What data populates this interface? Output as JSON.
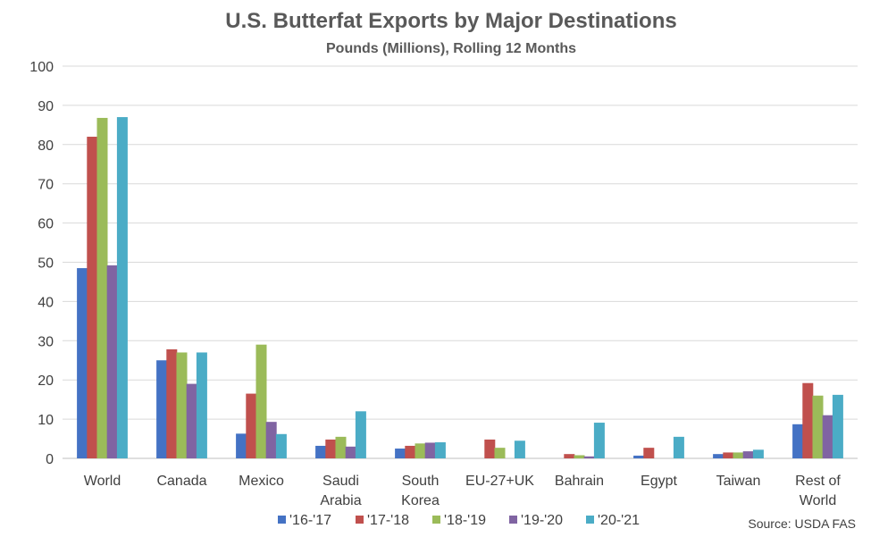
{
  "chart_data": {
    "type": "bar",
    "title": "U.S. Butterfat Exports by Major Destinations",
    "subtitle": "Pounds (Millions), Rolling 12 Months",
    "categories": [
      "World",
      "Canada",
      "Mexico",
      "Saudi Arabia",
      "South Korea",
      "EU-27+UK",
      "Bahrain",
      "Egypt",
      "Taiwan",
      "Rest of World"
    ],
    "series": [
      {
        "name": "'16-'17",
        "color": "#4472C4",
        "values": [
          48.5,
          25,
          6.3,
          3.2,
          2.5,
          0,
          0,
          0.7,
          1.1,
          8.7
        ]
      },
      {
        "name": "'17-'18",
        "color": "#C0504D",
        "values": [
          82,
          27.8,
          16.5,
          4.8,
          3.2,
          4.8,
          1.1,
          2.7,
          1.5,
          19.2
        ]
      },
      {
        "name": "'18-'19",
        "color": "#9BBB59",
        "values": [
          86.8,
          27,
          29,
          5.5,
          3.8,
          2.7,
          0.8,
          0,
          1.5,
          16
        ]
      },
      {
        "name": "'19-'20",
        "color": "#8064A2",
        "values": [
          49.2,
          19,
          9.3,
          3,
          4,
          0,
          0.5,
          0,
          1.8,
          11
        ]
      },
      {
        "name": "'20-'21",
        "color": "#4BACC6",
        "values": [
          87,
          27,
          6.2,
          12,
          4.1,
          4.5,
          9.1,
          5.5,
          2.2,
          16.2
        ]
      }
    ],
    "ylim": [
      0,
      100
    ],
    "yticks": [
      0,
      10,
      20,
      30,
      40,
      50,
      60,
      70,
      80,
      90,
      100
    ],
    "grid": true,
    "legend_position": "bottom",
    "source": "Source: USDA FAS"
  }
}
